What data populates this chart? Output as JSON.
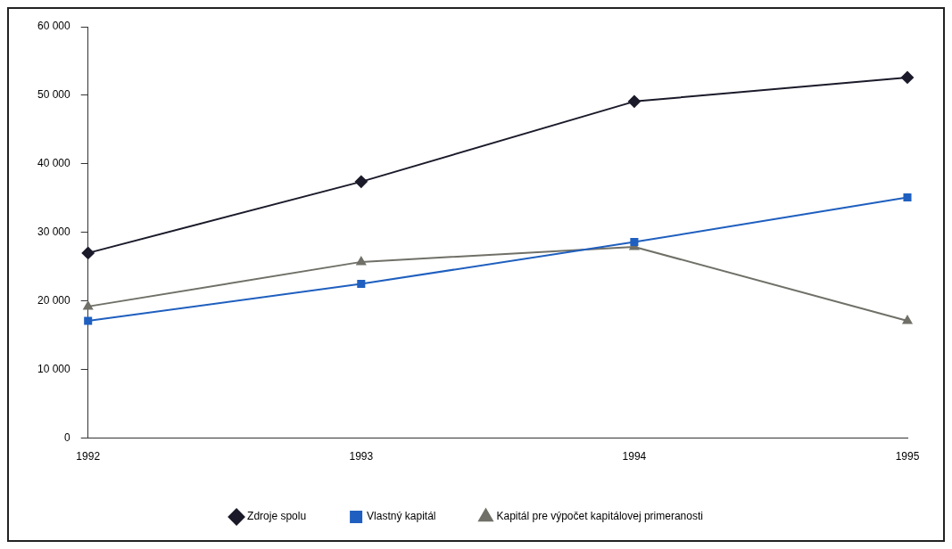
{
  "chart_data": {
    "type": "line",
    "categories": [
      "1992",
      "1993",
      "1994",
      "1995"
    ],
    "series": [
      {
        "name": "Zdroje spolu",
        "color": "#1a1a2a",
        "marker": "diamond",
        "values": [
          27000,
          37400,
          49100,
          52600
        ]
      },
      {
        "name": "Vlastný kapitál",
        "color": "#1f5fbf",
        "marker": "square",
        "values": [
          17100,
          22500,
          28600,
          35100
        ]
      },
      {
        "name": "Kapitál pre výpočet kapitálovej primeranosti",
        "color": "#707068",
        "marker": "triangle",
        "values": [
          19200,
          25700,
          27900,
          17100
        ]
      }
    ],
    "ylim": [
      0,
      60000
    ],
    "yticks": [
      {
        "value": 0,
        "label": "0"
      },
      {
        "value": 10000,
        "label": "10 000"
      },
      {
        "value": 20000,
        "label": "20 000"
      },
      {
        "value": 30000,
        "label": "30 000"
      },
      {
        "value": 40000,
        "label": "40 000"
      },
      {
        "value": 50000,
        "label": "50 000"
      },
      {
        "value": 60000,
        "label": "60 000"
      }
    ],
    "grid": false,
    "legend": "bottom",
    "line_style": "solid"
  }
}
